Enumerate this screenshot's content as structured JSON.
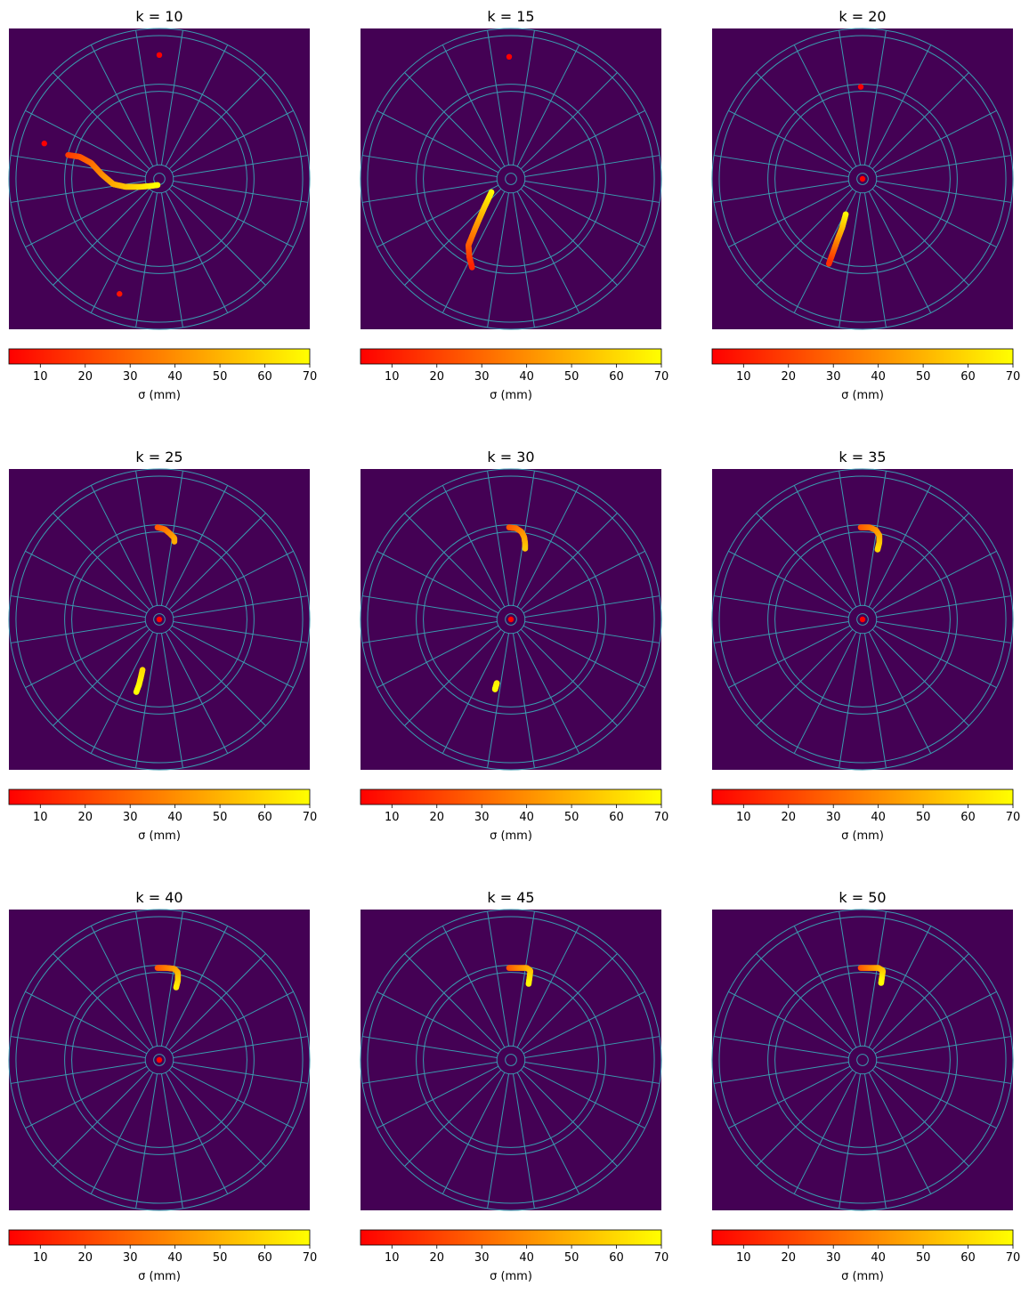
{
  "colors": {
    "background": "#440154",
    "board_lines": "#3a9bb0",
    "cmap_low": "#ff0000",
    "cmap_mid": "#ff8000",
    "cmap_high": "#ffff00"
  },
  "colorbar": {
    "label": "σ (mm)",
    "range": [
      3,
      70
    ],
    "ticks": [
      10,
      20,
      30,
      40,
      50,
      60,
      70
    ]
  },
  "board": {
    "units": "mm",
    "extent": 170,
    "sectors": 20,
    "ring_radii": [
      6.35,
      15.9,
      99,
      107,
      162,
      170
    ]
  },
  "chart_data": [
    {
      "type": "scatter",
      "title": "k = 10",
      "k": 10,
      "points": [
        {
          "x": 0,
          "y": 140,
          "sigma": 3
        },
        {
          "x": -130,
          "y": 40,
          "sigma": 3
        },
        {
          "x": -45,
          "y": -130,
          "sigma": 8
        }
      ],
      "curves": [
        {
          "sigma_start": 18,
          "sigma_end": 70,
          "path": [
            [
              -103,
              27
            ],
            [
              -90,
              25
            ],
            [
              -77,
              18
            ],
            [
              -65,
              5
            ],
            [
              -52,
              -6
            ],
            [
              -38,
              -9
            ],
            [
              -22,
              -9
            ],
            [
              -10,
              -8
            ],
            [
              -2,
              -7
            ]
          ]
        }
      ]
    },
    {
      "type": "scatter",
      "title": "k = 15",
      "k": 15,
      "points": [
        {
          "x": -2,
          "y": 138,
          "sigma": 3
        }
      ],
      "curves": [
        {
          "sigma_start": 70,
          "sigma_end": 12,
          "path": [
            [
              -22,
              -15
            ],
            [
              -30,
              -32
            ],
            [
              -40,
              -55
            ],
            [
              -48,
              -75
            ],
            [
              -47,
              -88
            ],
            [
              -44,
              -100
            ]
          ]
        }
      ]
    },
    {
      "type": "scatter",
      "title": "k = 20",
      "k": 20,
      "points": [
        {
          "x": -2,
          "y": 104,
          "sigma": 3
        },
        {
          "x": 0,
          "y": 0,
          "sigma": 3
        }
      ],
      "curves": [
        {
          "sigma_start": 70,
          "sigma_end": 15,
          "path": [
            [
              -19,
              -40
            ],
            [
              -23,
              -55
            ],
            [
              -28,
              -68
            ],
            [
              -33,
              -82
            ],
            [
              -38,
              -96
            ]
          ]
        }
      ]
    },
    {
      "type": "scatter",
      "title": "k = 25",
      "k": 25,
      "points": [
        {
          "x": 0,
          "y": 0,
          "sigma": 3
        }
      ],
      "curves": [
        {
          "sigma_start": 25,
          "sigma_end": 48,
          "path": [
            [
              -2,
              104
            ],
            [
              6,
              102
            ],
            [
              12,
              97
            ],
            [
              17,
              92
            ],
            [
              17,
              88
            ]
          ]
        },
        {
          "sigma_start": 60,
          "sigma_end": 70,
          "path": [
            [
              -19,
              -57
            ],
            [
              -21,
              -66
            ],
            [
              -23,
              -74
            ],
            [
              -26,
              -82
            ]
          ]
        }
      ]
    },
    {
      "type": "scatter",
      "title": "k = 30",
      "k": 30,
      "points": [
        {
          "x": 0,
          "y": 0,
          "sigma": 3
        }
      ],
      "curves": [
        {
          "sigma_start": 25,
          "sigma_end": 55,
          "path": [
            [
              -2,
              104
            ],
            [
              6,
              103
            ],
            [
              12,
              99
            ],
            [
              15,
              93
            ],
            [
              16,
              86
            ],
            [
              16,
              80
            ]
          ]
        },
        {
          "sigma_start": 65,
          "sigma_end": 70,
          "path": [
            [
              -16,
              -72
            ],
            [
              -18,
              -79
            ]
          ]
        }
      ]
    },
    {
      "type": "scatter",
      "title": "k = 35",
      "k": 35,
      "points": [
        {
          "x": 0,
          "y": 0,
          "sigma": 3
        }
      ],
      "curves": [
        {
          "sigma_start": 25,
          "sigma_end": 60,
          "path": [
            [
              -2,
              104
            ],
            [
              8,
              104
            ],
            [
              15,
              101
            ],
            [
              19,
              95
            ],
            [
              19,
              87
            ],
            [
              17,
              79
            ]
          ]
        }
      ]
    },
    {
      "type": "scatter",
      "title": "k = 40",
      "k": 40,
      "points": [
        {
          "x": 0,
          "y": 0,
          "sigma": 3
        }
      ],
      "curves": [
        {
          "sigma_start": 25,
          "sigma_end": 65,
          "path": [
            [
              -2,
              104
            ],
            [
              8,
              104
            ],
            [
              17,
              103
            ],
            [
              21,
              99
            ],
            [
              21,
              90
            ],
            [
              19,
              82
            ]
          ]
        }
      ]
    },
    {
      "type": "scatter",
      "title": "k = 45",
      "k": 45,
      "points": [],
      "curves": [
        {
          "sigma_start": 25,
          "sigma_end": 68,
          "path": [
            [
              -2,
              104
            ],
            [
              8,
              104
            ],
            [
              18,
              104
            ],
            [
              22,
              101
            ],
            [
              21,
              93
            ],
            [
              20,
              86
            ]
          ]
        }
      ]
    },
    {
      "type": "scatter",
      "title": "k = 50",
      "k": 50,
      "points": [],
      "curves": [
        {
          "sigma_start": 25,
          "sigma_end": 70,
          "path": [
            [
              -2,
              104
            ],
            [
              8,
              104
            ],
            [
              18,
              104
            ],
            [
              23,
              101
            ],
            [
              22,
              94
            ],
            [
              21,
              87
            ]
          ]
        }
      ]
    }
  ]
}
